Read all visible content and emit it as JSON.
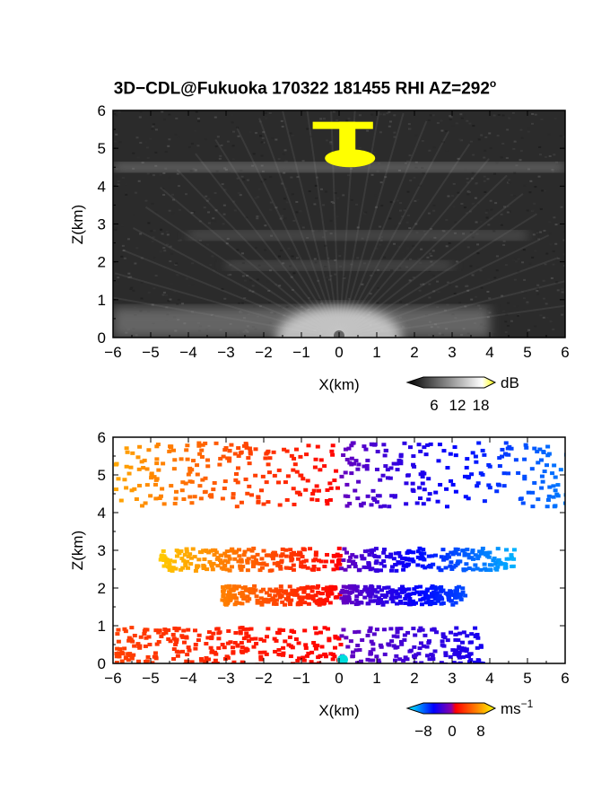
{
  "title": "3D−CDL@Fukuoka 170322 181455 RHI AZ=292",
  "title_superscript": "o",
  "chart_data": [
    {
      "type": "heatmap",
      "panel": "top",
      "quantity": "backscatter",
      "xlabel": "X(km)",
      "ylabel": "Z(km)",
      "xlim": [
        -6,
        6
      ],
      "ylim": [
        0,
        6
      ],
      "xticks": [
        -6,
        -5,
        -4,
        -3,
        -2,
        -1,
        0,
        1,
        2,
        3,
        4,
        5,
        6
      ],
      "yticks": [
        0,
        1,
        2,
        3,
        4,
        5,
        6
      ],
      "colorbar": {
        "unit": "dB",
        "ticks": [
          "6",
          "12",
          "18"
        ],
        "range": [
          0,
          20
        ],
        "colors": [
          "#000000",
          "#ffffff",
          "#ffff00"
        ]
      },
      "layers": [
        {
          "feature": "bright layer",
          "z": 4.5,
          "x_range": [
            -6,
            6
          ],
          "level_db": 12
        },
        {
          "feature": "cloud top (saturated)",
          "z_range": [
            4.5,
            5.7
          ],
          "x_range": [
            -0.7,
            0.9
          ],
          "level_db": 18
        },
        {
          "feature": "faint layer",
          "z": 2.7,
          "x_range": [
            -4,
            5
          ],
          "level_db": 7
        },
        {
          "feature": "faint layer",
          "z": 1.9,
          "x_range": [
            -3,
            3
          ],
          "level_db": 6
        },
        {
          "feature": "boundary layer",
          "z_range": [
            0,
            0.8
          ],
          "x_range": [
            -6,
            4
          ],
          "level_db": 10
        }
      ]
    },
    {
      "type": "heatmap",
      "panel": "bottom",
      "quantity": "doppler velocity",
      "xlabel": "X(km)",
      "ylabel": "Z(km)",
      "xlim": [
        -6,
        6
      ],
      "ylim": [
        0,
        6
      ],
      "xticks": [
        -6,
        -5,
        -4,
        -3,
        -2,
        -1,
        0,
        1,
        2,
        3,
        4,
        5,
        6
      ],
      "yticks": [
        0,
        1,
        2,
        3,
        4,
        5,
        6
      ],
      "colorbar": {
        "unit": "ms",
        "unit_superscript": "−1",
        "ticks": [
          "−8",
          "0",
          "8"
        ],
        "range": [
          -10,
          10
        ],
        "colors": [
          "#00ffff",
          "#0000ff",
          "#ff0000",
          "#ffff00"
        ]
      },
      "regions": [
        {
          "z_range": [
            4.2,
            5.9
          ],
          "x_range": [
            -6,
            6
          ],
          "velocity_left": 6,
          "velocity_right": -6
        },
        {
          "z_range": [
            2.5,
            3.1
          ],
          "x_range": [
            -4.8,
            4.6
          ],
          "velocity_left": 7,
          "velocity_right": -7
        },
        {
          "z_range": [
            1.6,
            2.1
          ],
          "x_range": [
            -3.2,
            3.3
          ],
          "velocity_left": 5,
          "velocity_right": -5
        },
        {
          "z_range": [
            0,
            1.0
          ],
          "x_range": [
            -6,
            3.8
          ],
          "velocity_left": 3,
          "velocity_right": -3
        }
      ]
    }
  ]
}
